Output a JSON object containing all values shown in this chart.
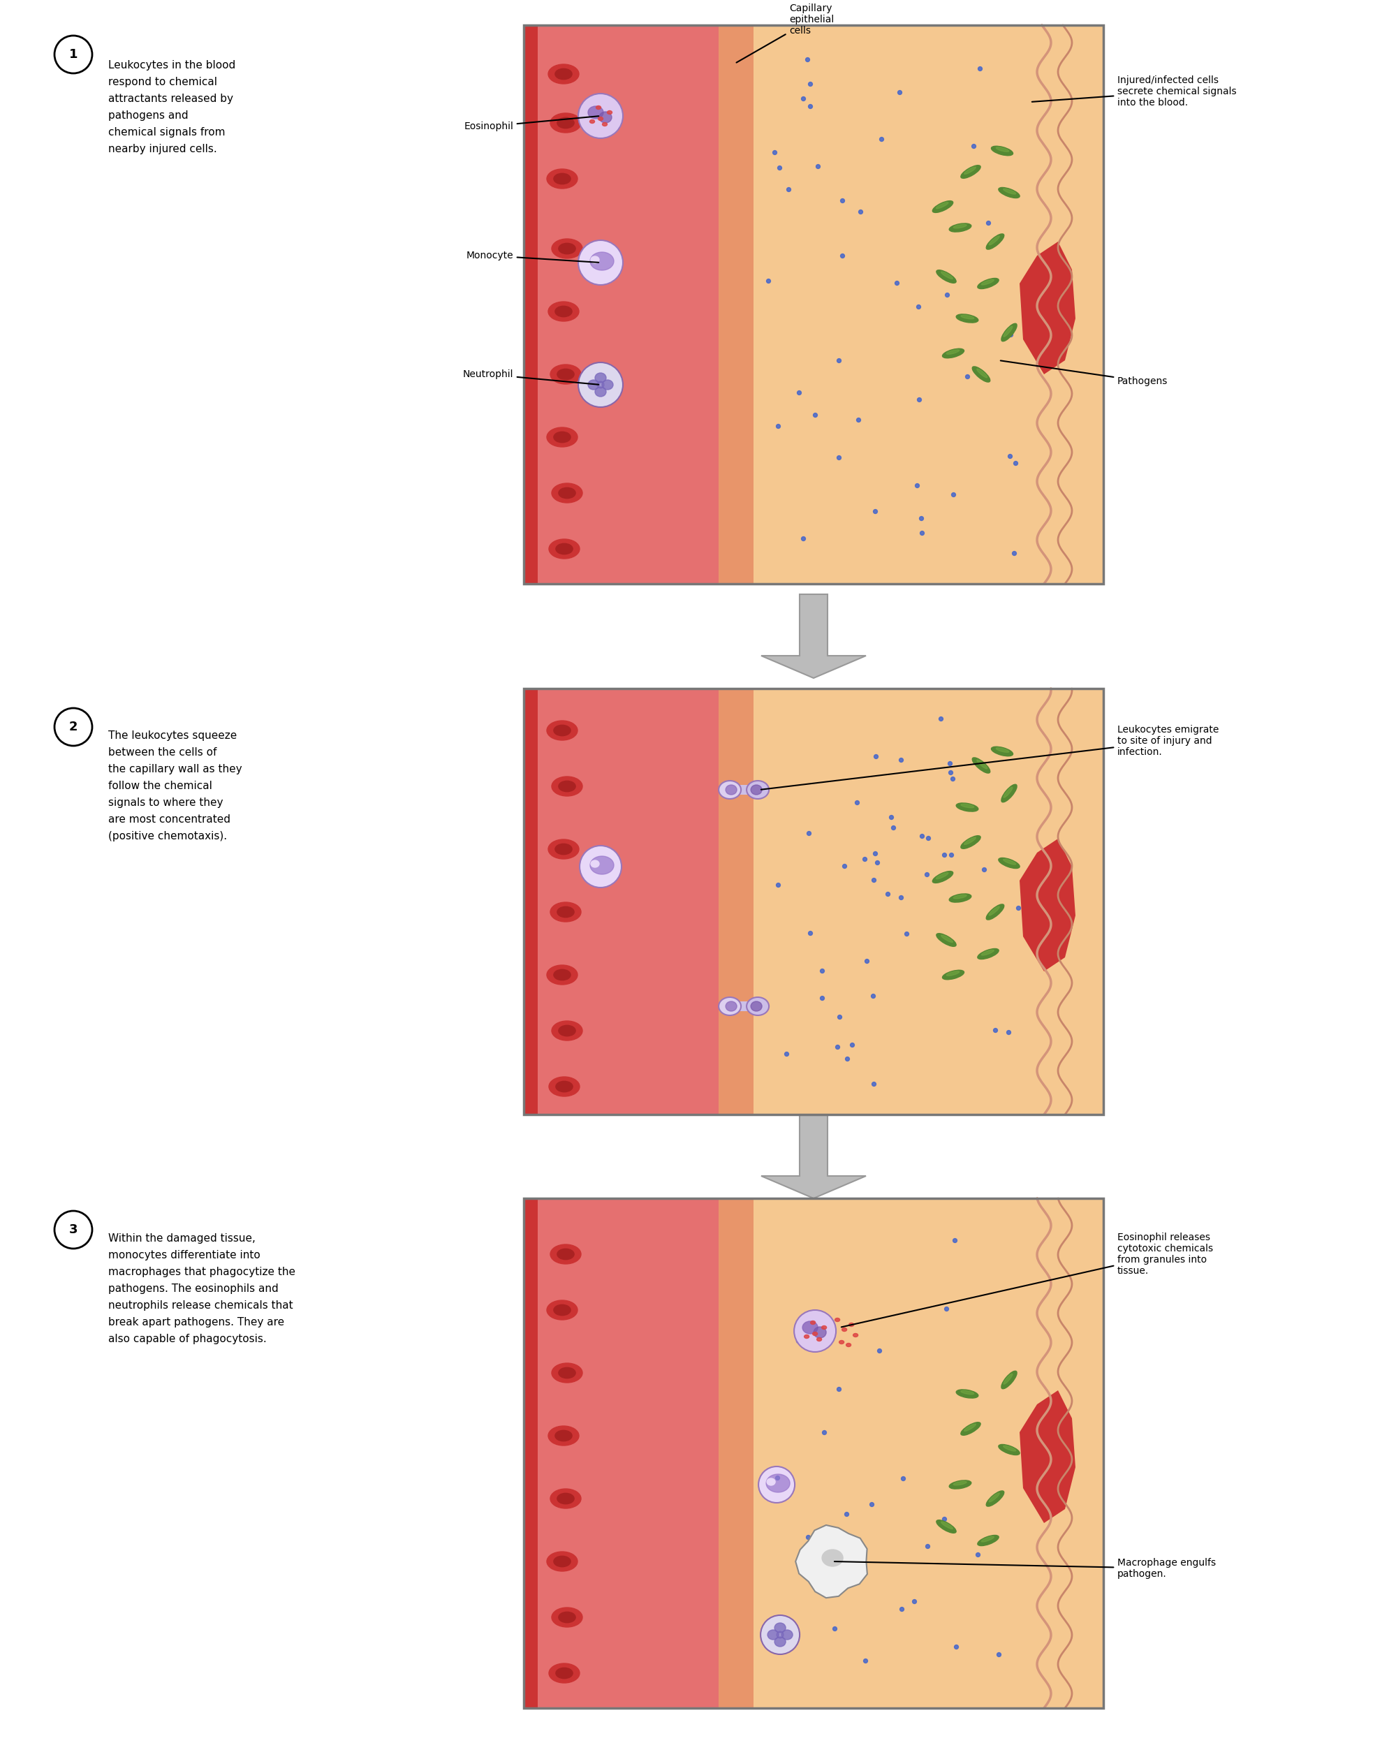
{
  "background_color": "#ffffff",
  "panel1": {
    "step_num": "1",
    "step_text": "Leukocytes in the blood\nrespond to chemical\nattractants released by\npathogens and\nchemical signals from\nnearby injured cells.",
    "label_eosinophil": "Eosinophil",
    "label_monocyte": "Monocyte",
    "label_neutrophil": "Neutrophil",
    "label_capillary": "Capillary\nepithelial\ncells",
    "label_injured": "Injured/infected cells\nsecrete chemical signals\ninto the blood.",
    "label_pathogens": "Pathogens"
  },
  "panel2": {
    "step_num": "2",
    "step_text": "The leukocytes squeeze\nbetween the cells of\nthe capillary wall as they\nfollow the chemical\nsignals to where they\nare most concentrated\n(positive chemotaxis).",
    "label_leukocytes": "Leukocytes emigrate\nto site of injury and\ninfection."
  },
  "panel3": {
    "step_num": "3",
    "step_text": "Within the damaged tissue,\nmonocytes differentiate into\nmacrophages that phagocytize the\npathogens. The eosinophils and\nneutrophils release chemicals that\nbreak apart pathogens. They are\nalso capable of phagocytosis.",
    "label_eosinophil": "Eosinophil releases\ncytotoxic chemicals\nfrom granules into\ntissue.",
    "label_macrophage": "Macrophage engulfs\npathogen."
  },
  "colors": {
    "bg": "#ffffff",
    "vessel_lumen": "#e57070",
    "vessel_left_border": "#cc3333",
    "vessel_wall": "#e8956a",
    "tissue": "#f5c890",
    "wavy1": "#d4947a",
    "wavy2": "#c8856a",
    "rbc": "#cc3333",
    "rbc_center": "#aa2222",
    "wound": "#cc3333",
    "pathogen": "#558833",
    "pathogen_highlight": "#77aa44",
    "chemical_dot": "#4466cc",
    "eos_outer": "#ddc8f0",
    "eos_border": "#9977bb",
    "eos_lobe1": "#8866bb",
    "eos_lobe2": "#7755aa",
    "eos_granule": "#dd4444",
    "mono_outer": "#e8d8f8",
    "mono_border": "#9977bb",
    "mono_nuc": "#9977cc",
    "neut_outer": "#ddd8ee",
    "neut_border": "#8866aa",
    "neut_lobe": "#7766bb",
    "squeeze_outer": "#ddd0f0",
    "squeeze_border": "#9977bb",
    "squeeze_inner": "#ccbee8",
    "squeeze_conn": "#ccc0e8",
    "macro_face": "#f0f0f0",
    "macro_border": "#888888",
    "macro_nuc": "#cccccc",
    "panel_border": "#777777",
    "arrow_face": "#bbbbbb",
    "arrow_border": "#999999",
    "step_circle_face": "#ffffff",
    "step_circle_edge": "#000000",
    "annotation_line": "#000000",
    "text": "#000000"
  }
}
